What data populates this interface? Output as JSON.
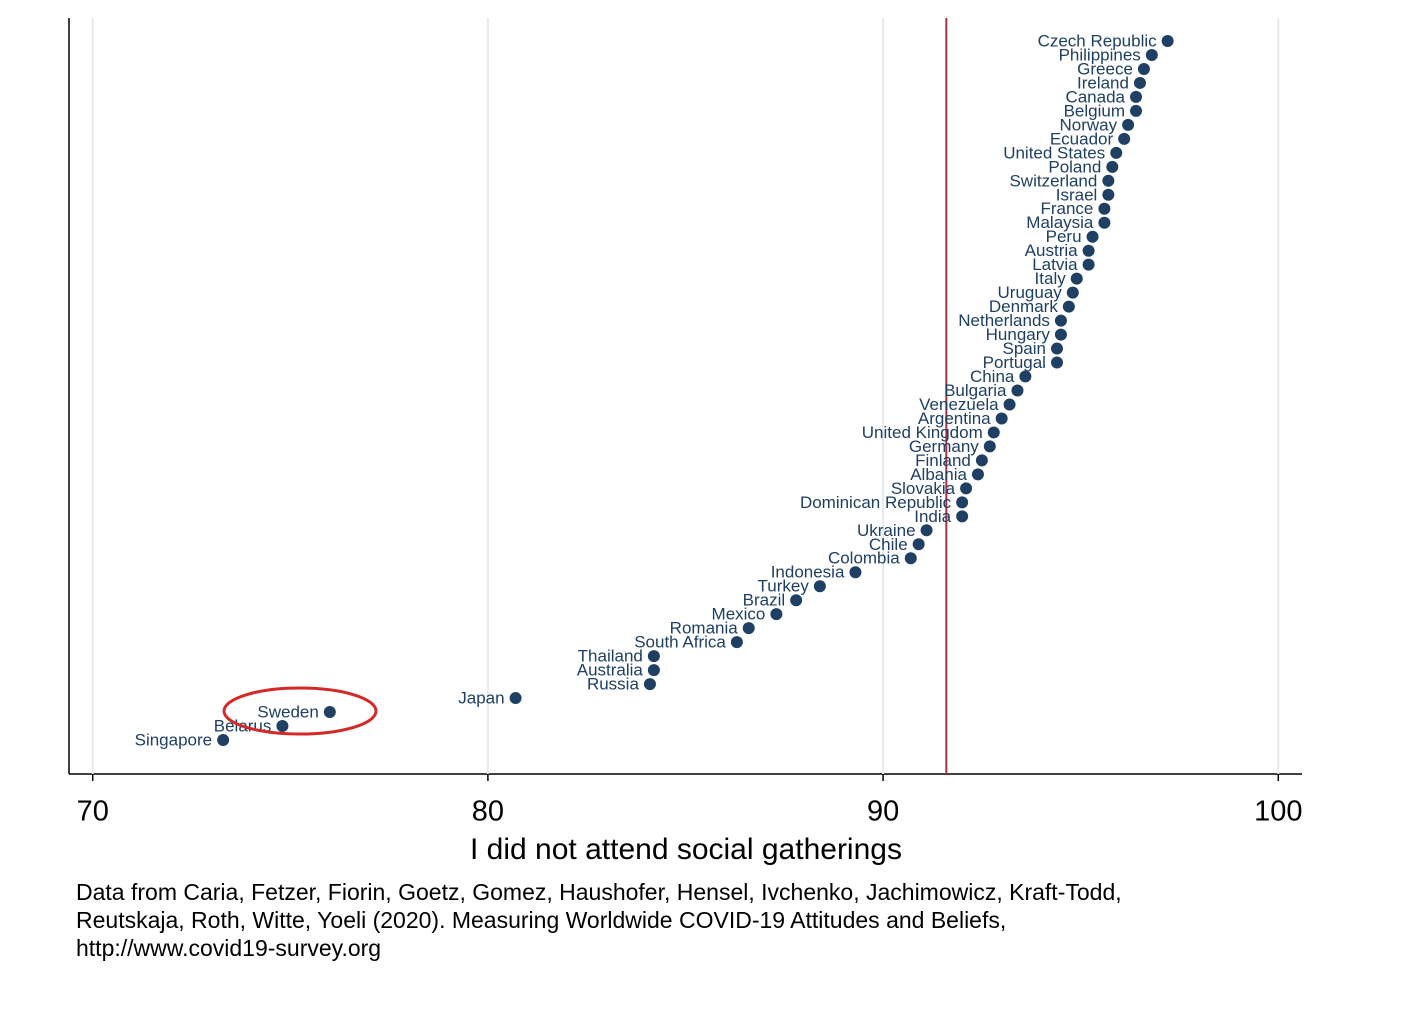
{
  "chart_data": {
    "type": "dot",
    "x_label": "I did not attend social gatherings",
    "categories": [
      "Czech Republic",
      "Philippines",
      "Greece",
      "Ireland",
      "Canada",
      "Belgium",
      "Norway",
      "Ecuador",
      "United States",
      "Poland",
      "Switzerland",
      "Israel",
      "France",
      "Malaysia",
      "Peru",
      "Austria",
      "Latvia",
      "Italy",
      "Uruguay",
      "Denmark",
      "Netherlands",
      "Hungary",
      "Spain",
      "Portugal",
      "China",
      "Bulgaria",
      "Venezuela",
      "Argentina",
      "United Kingdom",
      "Germany",
      "Finland",
      "Albania",
      "Slovakia",
      "Dominican Republic",
      "India",
      "Ukraine",
      "Chile",
      "Colombia",
      "Indonesia",
      "Turkey",
      "Brazil",
      "Mexico",
      "Romania",
      "South Africa",
      "Thailand",
      "Australia",
      "Russia",
      "Japan",
      "Sweden",
      "Belarus",
      "Singapore"
    ],
    "values": [
      97.2,
      96.8,
      96.6,
      96.5,
      96.4,
      96.4,
      96.2,
      96.1,
      95.9,
      95.8,
      95.7,
      95.7,
      95.6,
      95.6,
      95.3,
      95.2,
      95.2,
      94.9,
      94.8,
      94.7,
      94.5,
      94.5,
      94.4,
      94.4,
      93.6,
      93.4,
      93.2,
      93.0,
      92.8,
      92.7,
      92.5,
      92.4,
      92.1,
      92.0,
      92.0,
      91.1,
      90.9,
      90.7,
      89.3,
      88.4,
      87.8,
      87.3,
      86.6,
      86.3,
      84.2,
      84.2,
      84.1,
      80.7,
      76.0,
      74.8,
      73.3
    ],
    "color": "#1f3f63",
    "xlim": [
      69.4,
      100.6
    ],
    "xticks": [
      70,
      80,
      90,
      100
    ],
    "grid": true,
    "vline": 91.6,
    "vline_color": "#a8323e",
    "note": [
      "Data from Caria, Fetzer, Fiorin, Goetz, Gomez, Haushofer, Hensel, Ivchenko, Jachimowicz, Kraft-Todd,",
      "Reutskaja, Roth, Witte, Yoeli (2020). Measuring Worldwide COVID-19 Attitudes and Beliefs,",
      "http://www.covid19-survey.org"
    ]
  }
}
